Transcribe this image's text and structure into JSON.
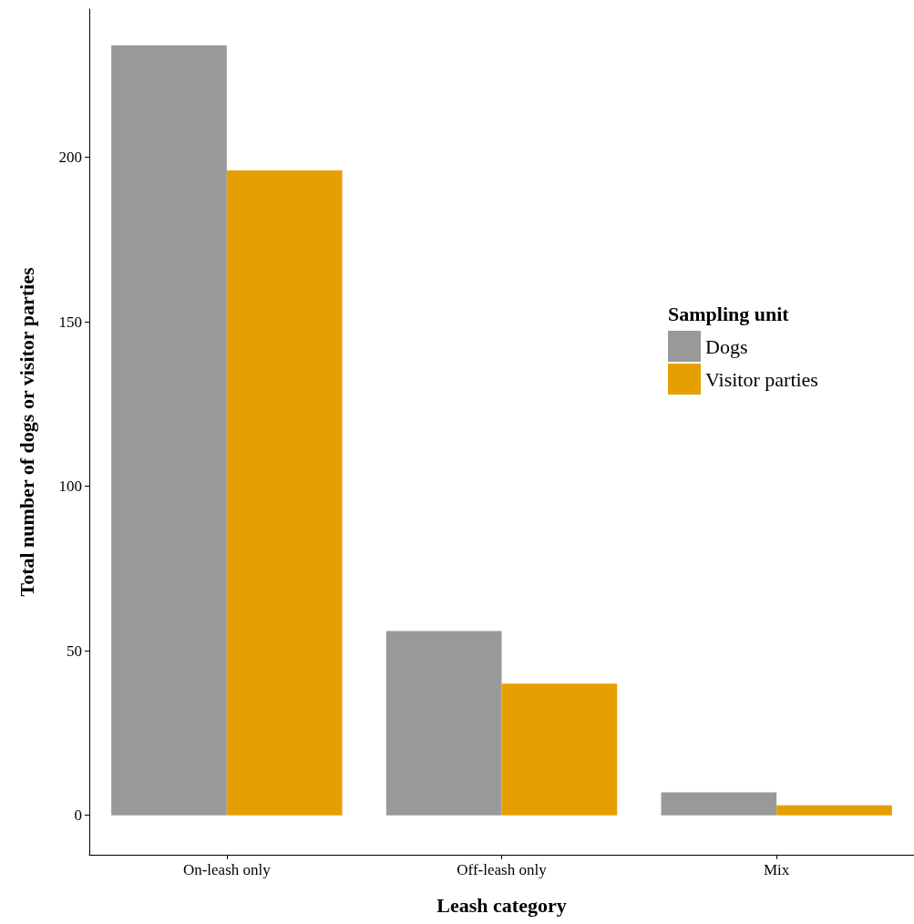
{
  "chart_data": {
    "type": "bar",
    "xlabel": "Leash category",
    "ylabel": "Total number of dogs or visitor parties",
    "legend_title": "Sampling unit",
    "categories": [
      "On-leash only",
      "Off-leash only",
      "Mix"
    ],
    "series": [
      {
        "name": "Dogs",
        "color": "#999999",
        "values": [
          234,
          56,
          7
        ]
      },
      {
        "name": "Visitor parties",
        "color": "#e69f00",
        "values": [
          196,
          40,
          3
        ]
      }
    ],
    "ylim": [
      -12,
      245
    ],
    "yticks": [
      0,
      50,
      100,
      150,
      200
    ],
    "grid": false,
    "legend": "right"
  }
}
